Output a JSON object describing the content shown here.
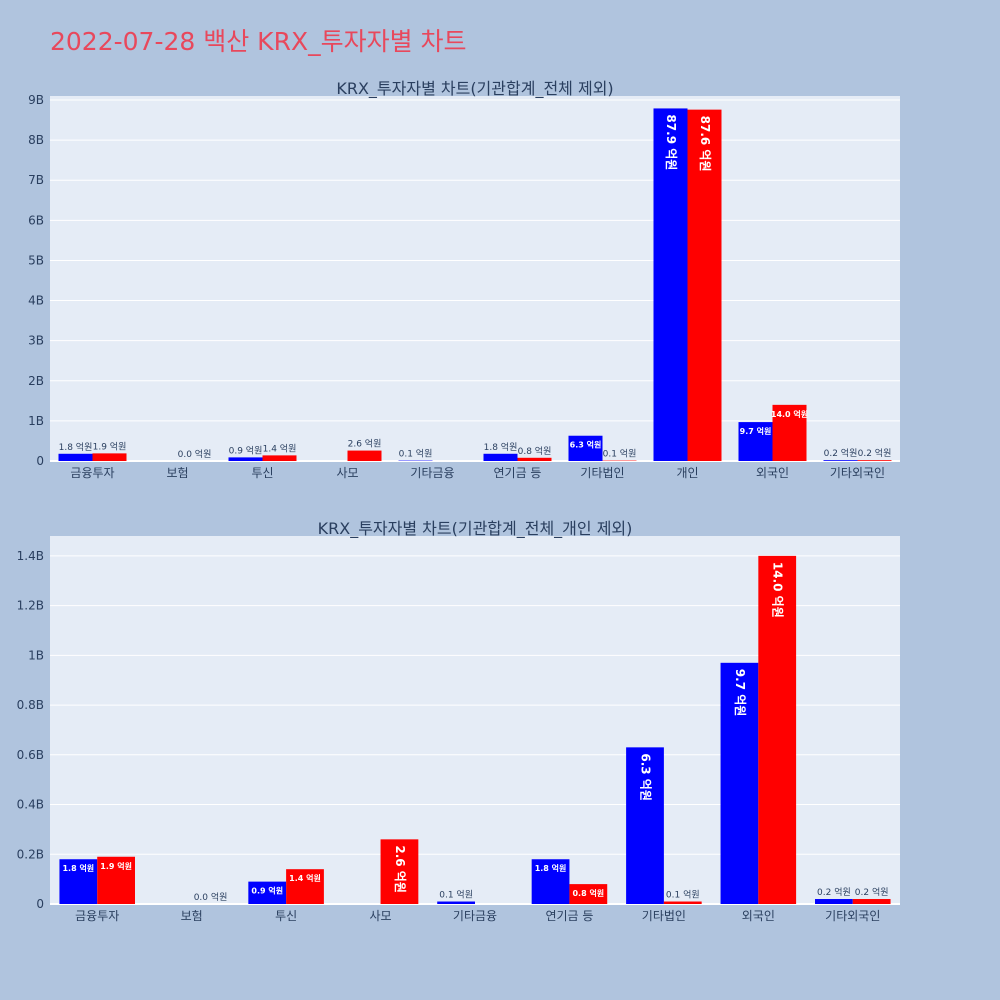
{
  "page_title": "2022-07-28 백산 KRX_투자자별 차트",
  "colors": {
    "buy": "#0000ff",
    "sell": "#ff0000",
    "background": "#b0c4de",
    "plot_bg": "#e5ecf6",
    "title": "#e8485c"
  },
  "chart_data": [
    {
      "type": "bar",
      "title": "KRX_투자자별 차트(기관합계_전체 제외)",
      "categories": [
        "금융투자",
        "보험",
        "투신",
        "사모",
        "기타금융",
        "연기금 등",
        "기타법인",
        "개인",
        "외국인",
        "기타외국인"
      ],
      "series": [
        {
          "color": "#0000ff",
          "values": [
            0.18,
            0.0,
            0.09,
            0.0,
            0.01,
            0.18,
            0.63,
            8.79,
            0.97,
            0.02
          ],
          "labels": [
            "1.8 억원",
            "",
            "0.9 억원",
            "",
            "0.1 억원",
            "1.8 억원",
            "6.3 억원",
            "87.9 억원",
            "9.7 억원",
            "0.2 억원"
          ]
        },
        {
          "color": "#ff0000",
          "values": [
            0.19,
            0.0,
            0.14,
            0.26,
            0.0,
            0.08,
            0.01,
            8.76,
            1.4,
            0.02
          ],
          "labels": [
            "1.9 억원",
            "0.0 억원",
            "1.4 억원",
            "2.6 억원",
            "",
            "0.8 억원",
            "0.1 억원",
            "87.6 억원",
            "14.0 억원",
            "0.2 억원"
          ]
        }
      ],
      "ylim": [
        0,
        9.1
      ],
      "yticks": [
        0,
        1,
        2,
        3,
        4,
        5,
        6,
        7,
        8,
        9
      ],
      "ytick_labels": [
        "0",
        "1B",
        "2B",
        "3B",
        "4B",
        "5B",
        "6B",
        "7B",
        "8B",
        "9B"
      ],
      "xlabel": "",
      "ylabel": "",
      "grid": true
    },
    {
      "type": "bar",
      "title": "KRX_투자자별 차트(기관합계_전체_개인 제외)",
      "categories": [
        "금융투자",
        "보험",
        "투신",
        "사모",
        "기타금융",
        "연기금 등",
        "기타법인",
        "외국인",
        "기타외국인"
      ],
      "series": [
        {
          "color": "#0000ff",
          "values": [
            0.18,
            0.0,
            0.09,
            0.0,
            0.01,
            0.18,
            0.63,
            0.97,
            0.02
          ],
          "labels": [
            "1.8 억원",
            "",
            "0.9 억원",
            "",
            "0.1 억원",
            "1.8 억원",
            "6.3 억원",
            "9.7 억원",
            "0.2 억원"
          ]
        },
        {
          "color": "#ff0000",
          "values": [
            0.19,
            0.0,
            0.14,
            0.26,
            0.0,
            0.08,
            0.01,
            1.4,
            0.02
          ],
          "labels": [
            "1.9 억원",
            "0.0 억원",
            "1.4 억원",
            "2.6 억원",
            "",
            "0.8 억원",
            "0.1 억원",
            "14.0 억원",
            "0.2 억원"
          ]
        }
      ],
      "ylim": [
        0,
        1.48
      ],
      "yticks": [
        0,
        0.2,
        0.4,
        0.6,
        0.8,
        1.0,
        1.2,
        1.4
      ],
      "ytick_labels": [
        "0",
        "0.2B",
        "0.4B",
        "0.6B",
        "0.8B",
        "1B",
        "1.2B",
        "1.4B"
      ],
      "xlabel": "",
      "ylabel": "",
      "grid": true
    }
  ]
}
